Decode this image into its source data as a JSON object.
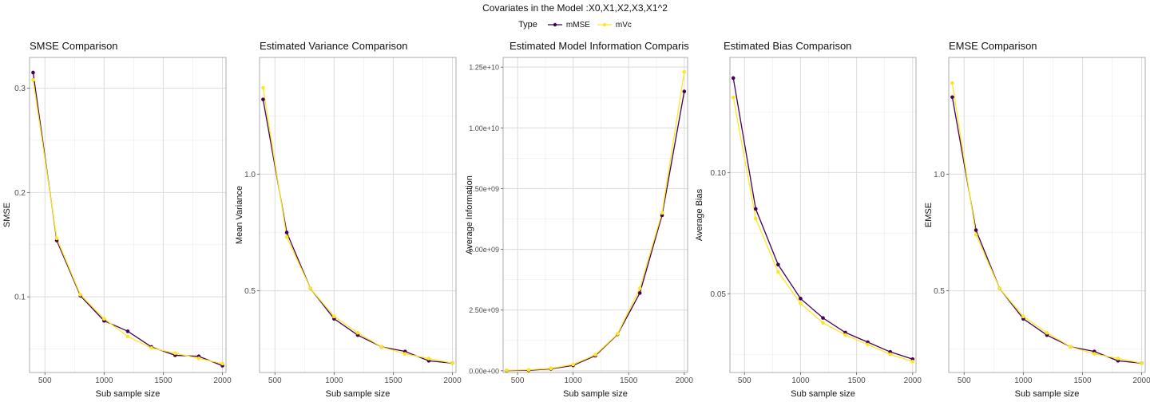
{
  "figure": {
    "suptitle": "Covariates in the Model :X0,X1,X2,X3,X1^2",
    "legend": {
      "title": "Type",
      "entries": [
        {
          "label": "mMSE",
          "color": "#440154"
        },
        {
          "label": "mVc",
          "color": "#FDE725"
        }
      ]
    }
  },
  "chart_data": [
    {
      "type": "line",
      "title": "SMSE Comparison",
      "xlabel": "Sub sample size",
      "ylabel": "SMSE",
      "xlim": [
        370,
        2030
      ],
      "ylim": [
        0.0275,
        0.3295
      ],
      "xticks": [
        500,
        1000,
        1500,
        2000
      ],
      "xticklabels": [
        "500",
        "1000",
        "1500",
        "2000"
      ],
      "yticks": [
        0.1,
        0.2,
        0.3
      ],
      "yticklabels": [
        "0.1",
        "0.2",
        "0.3"
      ],
      "x": [
        400,
        600,
        800,
        1000,
        1200,
        1400,
        1600,
        1800,
        2000
      ],
      "series": [
        {
          "name": "mMSE",
          "color": "#440154",
          "values": [
            0.315,
            0.154,
            0.101,
            0.077,
            0.067,
            0.052,
            0.044,
            0.043,
            0.034
          ]
        },
        {
          "name": "mVc",
          "color": "#FDE725",
          "values": [
            0.308,
            0.156,
            0.102,
            0.079,
            0.062,
            0.051,
            0.046,
            0.041,
            0.036
          ]
        }
      ]
    },
    {
      "type": "line",
      "title": "Estimated Variance Comparison",
      "xlabel": "Sub sample size",
      "ylabel": "Mean Variance",
      "xlim": [
        370,
        2030
      ],
      "ylim": [
        0.15,
        1.5
      ],
      "xticks": [
        500,
        1000,
        1500,
        2000
      ],
      "xticklabels": [
        "500",
        "1000",
        "1500",
        "2000"
      ],
      "yticks": [
        0.5,
        1.0
      ],
      "yticklabels": [
        "0.5",
        "1.0"
      ],
      "x": [
        400,
        600,
        800,
        1000,
        1200,
        1400,
        1600,
        1800,
        2000
      ],
      "series": [
        {
          "name": "mMSE",
          "color": "#440154",
          "values": [
            1.32,
            0.75,
            0.51,
            0.38,
            0.31,
            0.26,
            0.24,
            0.2,
            0.19
          ]
        },
        {
          "name": "mVc",
          "color": "#FDE725",
          "values": [
            1.37,
            0.73,
            0.51,
            0.39,
            0.32,
            0.26,
            0.23,
            0.21,
            0.19
          ]
        }
      ]
    },
    {
      "type": "line",
      "title": "Estimated Model Information Comparison",
      "xlabel": "Sub sample size",
      "ylabel": "Average Information",
      "xlim": [
        370,
        2030
      ],
      "ylim": [
        -70000000.0,
        12900000000.0
      ],
      "xticks": [
        500,
        1000,
        1500,
        2000
      ],
      "xticklabels": [
        "500",
        "1000",
        "1500",
        "2000"
      ],
      "yticks": [
        0,
        2500000000.0,
        5000000000.0,
        7500000000.0,
        10000000000.0,
        12500000000.0
      ],
      "yticklabels": [
        "0.00e+00",
        "2.50e+09",
        "5.00e+09",
        "7.50e+09",
        "1.00e+10",
        "1.25e+10"
      ],
      "x": [
        400,
        600,
        800,
        1000,
        1200,
        1400,
        1600,
        1800,
        2000
      ],
      "series": [
        {
          "name": "mMSE",
          "color": "#440154",
          "values": [
            10000000.0,
            20000000.0,
            80000000.0,
            220000000.0,
            620000000.0,
            1500000000.0,
            3200000000.0,
            6400000000.0,
            11500000000.0
          ]
        },
        {
          "name": "mVc",
          "color": "#FDE725",
          "values": [
            20000000.0,
            40000000.0,
            100000000.0,
            260000000.0,
            660000000.0,
            1520000000.0,
            3400000000.0,
            6500000000.0,
            12300000000.0
          ]
        }
      ]
    },
    {
      "type": "line",
      "title": "Estimated Bias Comparison",
      "xlabel": "Sub sample size",
      "ylabel": "Average Bias",
      "xlim": [
        370,
        2030
      ],
      "ylim": [
        0.0175,
        0.1475
      ],
      "xticks": [
        500,
        1000,
        1500,
        2000
      ],
      "xticklabels": [
        "500",
        "1000",
        "1500",
        "2000"
      ],
      "yticks": [
        0.05,
        0.1
      ],
      "yticklabels": [
        "0.05",
        "0.10"
      ],
      "x": [
        400,
        600,
        800,
        1000,
        1200,
        1400,
        1600,
        1800,
        2000
      ],
      "series": [
        {
          "name": "mMSE",
          "color": "#440154",
          "values": [
            0.139,
            0.085,
            0.062,
            0.048,
            0.04,
            0.034,
            0.03,
            0.026,
            0.023
          ]
        },
        {
          "name": "mVc",
          "color": "#FDE725",
          "values": [
            0.131,
            0.081,
            0.059,
            0.046,
            0.038,
            0.033,
            0.029,
            0.025,
            0.022
          ]
        }
      ]
    },
    {
      "type": "line",
      "title": "EMSE Comparison",
      "xlabel": "Sub sample size",
      "ylabel": "EMSE",
      "xlim": [
        370,
        2030
      ],
      "ylim": [
        0.15,
        1.5
      ],
      "xticks": [
        500,
        1000,
        1500,
        2000
      ],
      "xticklabels": [
        "500",
        "1000",
        "1500",
        "2000"
      ],
      "yticks": [
        0.5,
        1.0
      ],
      "yticklabels": [
        "0.5",
        "1.0"
      ],
      "x": [
        400,
        600,
        800,
        1000,
        1200,
        1400,
        1600,
        1800,
        2000
      ],
      "series": [
        {
          "name": "mMSE",
          "color": "#440154",
          "values": [
            1.33,
            0.76,
            0.51,
            0.38,
            0.31,
            0.26,
            0.24,
            0.2,
            0.19
          ]
        },
        {
          "name": "mVc",
          "color": "#FDE725",
          "values": [
            1.39,
            0.74,
            0.51,
            0.39,
            0.32,
            0.26,
            0.23,
            0.21,
            0.19
          ]
        }
      ]
    }
  ]
}
